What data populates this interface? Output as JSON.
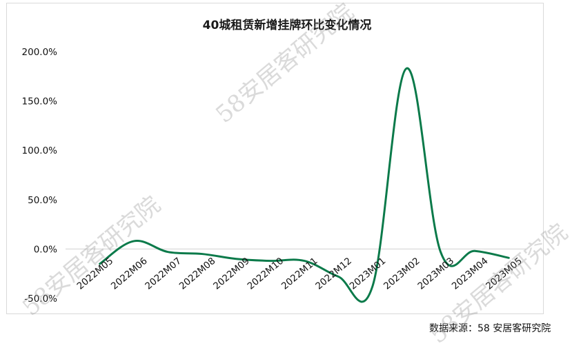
{
  "source_text": "数据来源：58 安居客研究院",
  "watermark_text": "58安居客研究院",
  "chart_data": {
    "type": "line",
    "title": "40城租赁新增挂牌环比变化情况",
    "xlabel": "",
    "ylabel": "",
    "categories": [
      "2022M05",
      "2022M06",
      "2022M07",
      "2022M08",
      "2022M09",
      "2022M10",
      "2022M11",
      "2022M12",
      "2023M01",
      "2023M02",
      "2023M03",
      "2023M04",
      "2023M05"
    ],
    "series": [
      {
        "values": [
          -15.0,
          8.0,
          -3.0,
          -5.0,
          -10.0,
          -12.0,
          -12.0,
          -28.0,
          -38.0,
          183.0,
          -3.0,
          -2.0,
          -9.0
        ],
        "color": "#0b7a4a"
      }
    ],
    "yticks": [
      "200.0%",
      "150.0%",
      "100.0%",
      "50.0%",
      "0.0%",
      "-50.0%"
    ],
    "ylim": [
      -50,
      200
    ],
    "grid": false,
    "legend": "none"
  }
}
